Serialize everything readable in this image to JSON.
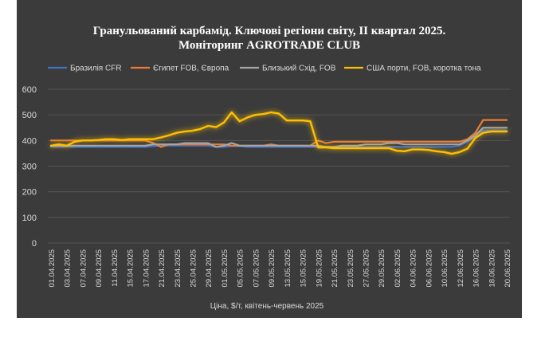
{
  "chart_data": {
    "type": "line",
    "title": "Гранульований карбамід. Ключові регіони світу, ІІ квартал 2025.",
    "subtitle": "Моніторинг AGROTRADE CLUB",
    "xlabel": "Ціна, $/т, квітень-червень 2025",
    "ylabel": "",
    "ylim": [
      0,
      600
    ],
    "yticks": [
      0,
      100,
      200,
      300,
      400,
      500,
      600
    ],
    "grid": true,
    "legend_position": "top",
    "x": [
      "01.04.2025",
      "02.04.2025",
      "03.04.2025",
      "04.04.2025",
      "07.04.2025",
      "08.04.2025",
      "09.04.2025",
      "10.04.2025",
      "11.04.2025",
      "14.04.2025",
      "15.04.2025",
      "16.04.2025",
      "17.04.2025",
      "18.04.2025",
      "21.04.2025",
      "22.04.2025",
      "23.04.2025",
      "24.04.2025",
      "25.04.2025",
      "28.04.2025",
      "29.04.2025",
      "30.04.2025",
      "01.05.2025",
      "02.05.2025",
      "05.05.2025",
      "06.05.2025",
      "07.05.2025",
      "08.05.2025",
      "09.05.2025",
      "12.05.2025",
      "13.05.2025",
      "14.05.2025",
      "15.05.2025",
      "16.05.2025",
      "19.05.2025",
      "20.05.2025",
      "21.05.2025",
      "22.05.2025",
      "23.05.2025",
      "26.05.2025",
      "27.05.2025",
      "28.05.2025",
      "29.05.2025",
      "30.05.2025",
      "02.06.2025",
      "03.06.2025",
      "04.06.2025",
      "05.06.2025",
      "06.06.2025",
      "09.06.2025",
      "10.06.2025",
      "11.06.2025",
      "12.06.2025",
      "13.06.2025",
      "16.06.2025",
      "17.06.2025",
      "18.06.2025",
      "19.06.2025",
      "20.06.2025"
    ],
    "tick_labels": [
      "01.04.2025",
      "03.04.2025",
      "07.04.2025",
      "09.04.2025",
      "11.04.2025",
      "15.04.2025",
      "17.04.2025",
      "21.04.2025",
      "23.04.2025",
      "25.04.2025",
      "29.04.2025",
      "01.05.2025",
      "05.05.2025",
      "07.05.2025",
      "09.05.2025",
      "13.05.2025",
      "15.05.2025",
      "19.05.2025",
      "21.05.2025",
      "23.05.2025",
      "27.05.2025",
      "29.05.2025",
      "02.06.2025",
      "04.06.2025",
      "06.06.2025",
      "10.06.2025",
      "12.06.2025",
      "16.06.2025",
      "18.06.2025",
      "20.06.2025"
    ],
    "series": [
      {
        "name": "Бразилія CFR",
        "color": "#4472c4",
        "values": [
          375,
          375,
          375,
          375,
          375,
          375,
          375,
          375,
          375,
          375,
          375,
          375,
          375,
          378,
          380,
          380,
          380,
          380,
          380,
          380,
          380,
          375,
          375,
          378,
          378,
          375,
          375,
          375,
          375,
          375,
          375,
          375,
          375,
          375,
          375,
          375,
          375,
          375,
          375,
          375,
          375,
          375,
          375,
          375,
          375,
          375,
          375,
          375,
          375,
          375,
          375,
          375,
          380,
          395,
          415,
          440,
          440,
          440,
          440
        ]
      },
      {
        "name": "Єгипет FOB, Європа",
        "color": "#ed7d31",
        "values": [
          400,
          400,
          400,
          400,
          400,
          400,
          400,
          400,
          400,
          400,
          400,
          400,
          400,
          390,
          375,
          385,
          385,
          385,
          385,
          385,
          385,
          385,
          385,
          380,
          380,
          380,
          380,
          380,
          385,
          380,
          380,
          380,
          380,
          380,
          400,
          390,
          395,
          395,
          395,
          395,
          395,
          395,
          395,
          395,
          395,
          395,
          395,
          395,
          395,
          395,
          395,
          395,
          395,
          405,
          430,
          480,
          480,
          480,
          480
        ]
      },
      {
        "name": "Близький Схід, FOB",
        "color": "#a5a5a5",
        "values": [
          380,
          380,
          380,
          380,
          380,
          380,
          380,
          380,
          380,
          380,
          380,
          380,
          380,
          385,
          385,
          385,
          385,
          390,
          390,
          390,
          390,
          375,
          380,
          390,
          380,
          380,
          380,
          380,
          380,
          380,
          380,
          380,
          380,
          380,
          380,
          375,
          375,
          380,
          380,
          380,
          385,
          385,
          385,
          390,
          390,
          385,
          385,
          385,
          385,
          385,
          385,
          385,
          385,
          400,
          420,
          450,
          450,
          450,
          450
        ]
      },
      {
        "name": "США порти, FOB, коротка тона",
        "color": "#ffc000",
        "values": [
          380,
          385,
          380,
          395,
          400,
          400,
          402,
          405,
          405,
          402,
          405,
          405,
          405,
          405,
          412,
          420,
          430,
          435,
          438,
          445,
          457,
          452,
          470,
          510,
          475,
          490,
          500,
          503,
          510,
          505,
          478,
          478,
          478,
          475,
          373,
          373,
          370,
          370,
          370,
          370,
          370,
          370,
          370,
          370,
          360,
          358,
          365,
          365,
          363,
          358,
          355,
          348,
          355,
          368,
          410,
          430,
          435,
          435,
          435
        ]
      }
    ]
  }
}
